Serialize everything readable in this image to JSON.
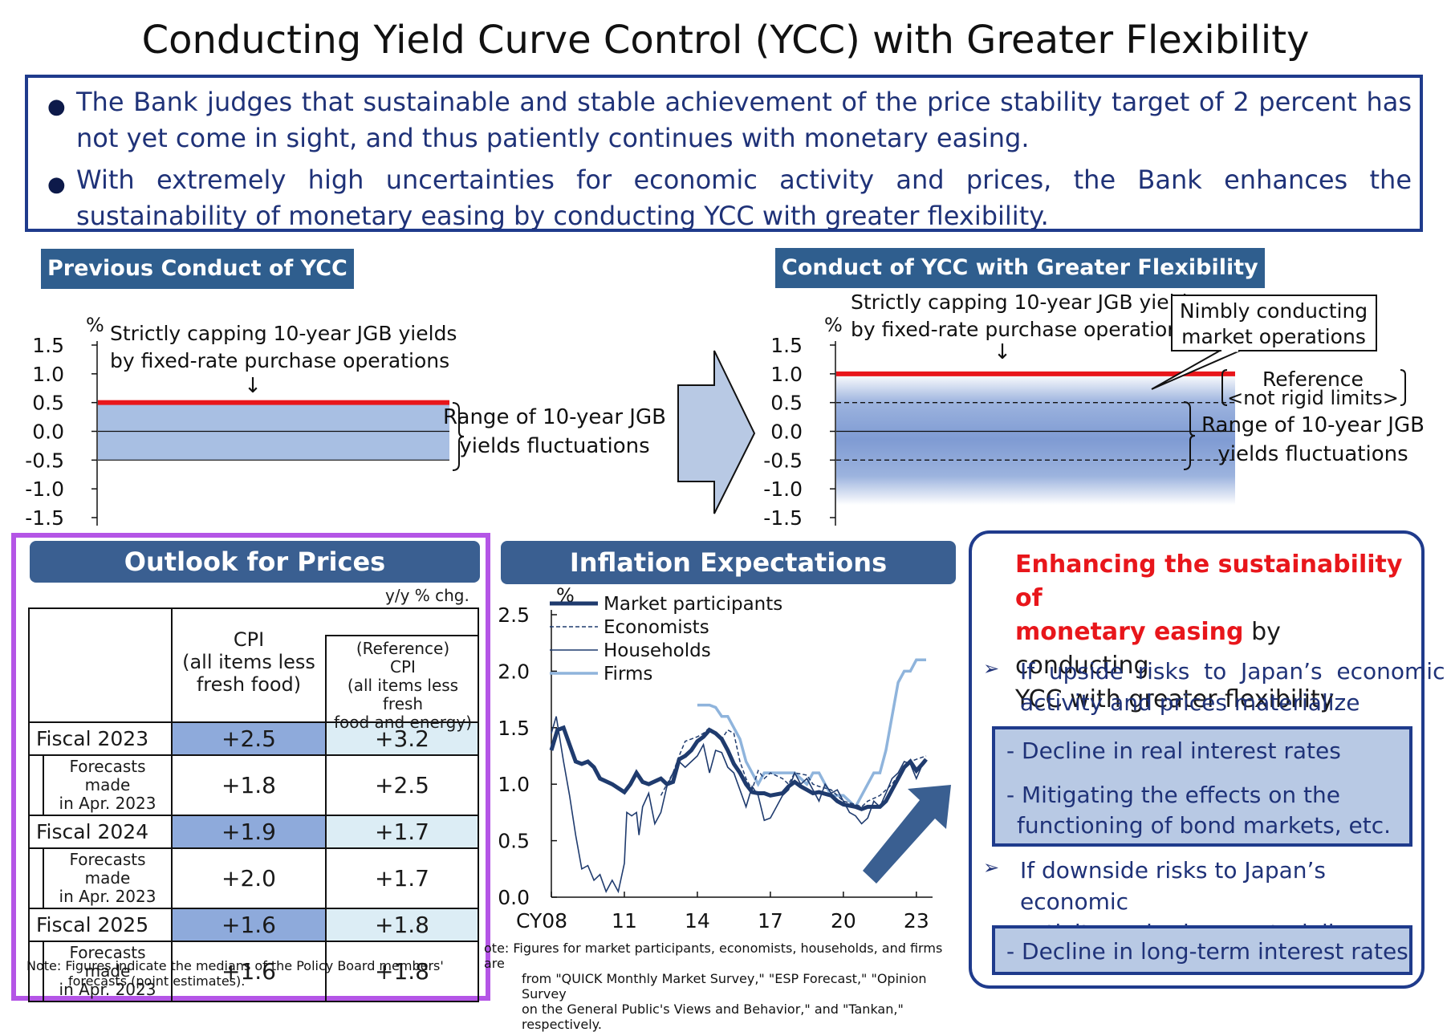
{
  "title": "Conducting Yield Curve Control (YCC) with Greater Flexibility",
  "intro_bullets": [
    "The Bank judges that sustainable and stable achievement of the price stability target of 2 percent has not yet come in sight, and thus patiently continues with monetary easing.",
    "With extremely high uncertainties for economic activity and prices, the Bank enhances the sustainability of monetary easing by conducting YCC with greater flexibility."
  ],
  "previous_ycc": {
    "label": "Previous Conduct of YCC",
    "annotation_line1": "Strictly capping 10-year JGB yields",
    "annotation_line2": "by fixed-rate purchase operations",
    "arrow_glyph": "↓",
    "range_line1": "Range of 10-year JGB",
    "range_line2": "yields fluctuations"
  },
  "flexible_ycc": {
    "label": "Conduct of YCC with Greater Flexibility",
    "annotation_line1": "Strictly capping 10-year JGB yields",
    "annotation_line2": "by fixed-rate purchase operations",
    "arrow_glyph": "↓",
    "callout_line1": "Nimbly conducting",
    "callout_line2": "market operations",
    "reference_line1": "Reference",
    "reference_line2": "<not rigid limits>",
    "range_line1": "Range of 10-year JGB",
    "range_line2": "yields fluctuations"
  },
  "outlook": {
    "heading": "Outlook for Prices",
    "unit": "y/y % chg.",
    "col1_header": [
      "CPI",
      "(all items less",
      "fresh food)"
    ],
    "col2_header": [
      "(Reference)",
      "CPI",
      "(all items less fresh",
      "food and energy)"
    ],
    "rows": [
      {
        "label": "Fiscal 2023",
        "cpi": "+2.5",
        "core": "+3.2",
        "forecast_label": [
          "Forecasts made",
          "in Apr. 2023"
        ],
        "f_cpi": "+1.8",
        "f_core": "+2.5"
      },
      {
        "label": "Fiscal 2024",
        "cpi": "+1.9",
        "core": "+1.7",
        "forecast_label": [
          "Forecasts made",
          "in Apr. 2023"
        ],
        "f_cpi": "+2.0",
        "f_core": "+1.7"
      },
      {
        "label": "Fiscal 2025",
        "cpi": "+1.6",
        "core": "+1.8",
        "forecast_label": [
          "Forecasts made",
          "in Apr. 2023"
        ],
        "f_cpi": "+1.6",
        "f_core": "+1.8"
      }
    ],
    "note_line1": "Note:  Figures  indicate  the  medians  of  the  Policy  Board  members'",
    "note_line2": "forecasts (point estimates)."
  },
  "inflation": {
    "heading": "Inflation Expectations",
    "note_line1": "ote: Figures for market participants, economists, households, and firms are",
    "note_line2": "from \"QUICK Monthly Market Survey,\" \"ESP Forecast,\" \"Opinion Survey",
    "note_line3": "on the General Public's Views and Behavior,\" and \"Tankan,\" respectively."
  },
  "enhancing": {
    "head_red_1": "Enhancing the sustainability of",
    "head_red_2": "monetary easing",
    "head_rest_2": " by conducting",
    "head_line3": "YCC with greater flexibility",
    "bullet_glyph": "➢",
    "upside_1": "If  upside  risks  to  Japan’s  economic",
    "upside_2": "activity and prices materialize",
    "upside_box_1": "- Decline in real interest rates",
    "upside_box_2": "- Mitigating the effects on the",
    "upside_box_3": "functioning of bond markets, etc.",
    "downside_1": "If downside risks to Japan’s economic",
    "downside_2": "activity and prices materialize",
    "downside_box": "- Decline in long-term interest rates"
  },
  "colors": {
    "navy": "#1f3278",
    "panel_blue": "#3a5f91",
    "red_cap": "#e8161b",
    "range_fill": "#a8bfe3",
    "highlight_cell": "#8eaadb",
    "light_cell": "#dcedf5",
    "purple_outline": "#b455e6"
  },
  "chart_data": [
    {
      "type": "area",
      "title": "Previous Conduct of YCC",
      "ylabel": "%",
      "ylim": [
        -1.5,
        1.5
      ],
      "yticks": [
        "1.5",
        "1.0",
        "0.5",
        "0.0",
        "-0.5",
        "-1.0",
        "-1.5"
      ],
      "cap": 0.5,
      "range": [
        -0.5,
        0.5
      ]
    },
    {
      "type": "area",
      "title": "Conduct of YCC with Greater Flexibility",
      "ylabel": "%",
      "ylim": [
        -1.5,
        1.5
      ],
      "yticks": [
        "1.5",
        "1.0",
        "0.5",
        "0.0",
        "-0.5",
        "-1.0",
        "-1.5"
      ],
      "cap": 1.0,
      "reference_range": [
        -0.5,
        0.5
      ]
    },
    {
      "type": "line",
      "title": "Inflation Expectations",
      "ylabel": "%",
      "ylim": [
        0.0,
        2.5
      ],
      "yticks": [
        "2.5",
        "2.0",
        "1.5",
        "1.0",
        "0.5",
        "0.0"
      ],
      "xticks": [
        "CY08",
        "11",
        "14",
        "17",
        "20",
        "23"
      ],
      "xtick_values": [
        2008,
        2011,
        2014,
        2017,
        2020,
        2023
      ],
      "xlim": [
        2008,
        2023.5
      ],
      "series": [
        {
          "name": "Market participants",
          "style": "thick",
          "points": [
            [
              2008,
              1.3
            ],
            [
              2008.25,
              1.48
            ],
            [
              2008.5,
              1.5
            ],
            [
              2008.75,
              1.35
            ],
            [
              2009,
              1.2
            ],
            [
              2009.25,
              1.18
            ],
            [
              2009.5,
              1.2
            ],
            [
              2009.75,
              1.15
            ],
            [
              2010,
              1.05
            ],
            [
              2010.5,
              1.0
            ],
            [
              2011,
              0.93
            ],
            [
              2011.25,
              1.0
            ],
            [
              2011.5,
              1.1
            ],
            [
              2011.75,
              1.02
            ],
            [
              2012,
              1.0
            ],
            [
              2012.5,
              1.05
            ],
            [
              2012.75,
              1.0
            ],
            [
              2013,
              1.02
            ],
            [
              2013.25,
              1.22
            ],
            [
              2013.5,
              1.25
            ],
            [
              2013.75,
              1.3
            ],
            [
              2014,
              1.38
            ],
            [
              2014.25,
              1.42
            ],
            [
              2014.5,
              1.48
            ],
            [
              2014.75,
              1.45
            ],
            [
              2015,
              1.4
            ],
            [
              2015.25,
              1.3
            ],
            [
              2015.5,
              1.18
            ],
            [
              2015.75,
              1.1
            ],
            [
              2016,
              1.0
            ],
            [
              2016.25,
              0.93
            ],
            [
              2016.5,
              0.92
            ],
            [
              2016.75,
              0.92
            ],
            [
              2017,
              0.9
            ],
            [
              2017.5,
              0.92
            ],
            [
              2017.75,
              0.98
            ],
            [
              2018,
              1.02
            ],
            [
              2018.25,
              0.98
            ],
            [
              2018.5,
              0.95
            ],
            [
              2018.75,
              0.92
            ],
            [
              2019,
              0.93
            ],
            [
              2019.5,
              0.9
            ],
            [
              2019.75,
              0.85
            ],
            [
              2020,
              0.82
            ],
            [
              2020.5,
              0.8
            ],
            [
              2020.75,
              0.78
            ],
            [
              2021,
              0.8
            ],
            [
              2021.5,
              0.8
            ],
            [
              2021.75,
              0.85
            ],
            [
              2022,
              0.95
            ],
            [
              2022.25,
              1.05
            ],
            [
              2022.5,
              1.15
            ],
            [
              2022.75,
              1.2
            ],
            [
              2023,
              1.12
            ],
            [
              2023.25,
              1.18
            ],
            [
              2023.4,
              1.22
            ]
          ]
        },
        {
          "name": "Economists",
          "style": "dashed",
          "points": [
            [
              2012.5,
              0.9
            ],
            [
              2012.75,
              1.0
            ],
            [
              2013,
              1.1
            ],
            [
              2013.25,
              1.25
            ],
            [
              2013.5,
              1.38
            ],
            [
              2013.75,
              1.4
            ],
            [
              2014,
              1.42
            ],
            [
              2014.25,
              1.45
            ],
            [
              2014.5,
              1.5
            ],
            [
              2014.75,
              1.45
            ],
            [
              2015,
              1.4
            ],
            [
              2015.25,
              1.48
            ],
            [
              2015.5,
              1.45
            ],
            [
              2015.75,
              1.2
            ],
            [
              2016,
              1.05
            ],
            [
              2016.25,
              0.95
            ],
            [
              2016.5,
              1.12
            ],
            [
              2016.75,
              1.05
            ],
            [
              2017,
              1.1
            ],
            [
              2017.5,
              1.05
            ],
            [
              2017.75,
              1.0
            ],
            [
              2018,
              1.1
            ],
            [
              2018.5,
              1.08
            ],
            [
              2018.75,
              1.0
            ],
            [
              2019,
              0.98
            ],
            [
              2019.5,
              0.95
            ],
            [
              2020,
              0.85
            ],
            [
              2020.5,
              0.82
            ],
            [
              2020.75,
              0.8
            ],
            [
              2021,
              0.85
            ],
            [
              2021.5,
              0.9
            ],
            [
              2022,
              1.0
            ],
            [
              2022.5,
              1.15
            ],
            [
              2022.75,
              1.2
            ],
            [
              2023,
              1.22
            ],
            [
              2023.4,
              1.25
            ]
          ]
        },
        {
          "name": "Households",
          "style": "thin",
          "points": [
            [
              2008,
              1.45
            ],
            [
              2008.2,
              1.6
            ],
            [
              2008.5,
              1.2
            ],
            [
              2008.75,
              0.9
            ],
            [
              2009,
              0.55
            ],
            [
              2009.25,
              0.25
            ],
            [
              2009.5,
              0.28
            ],
            [
              2009.75,
              0.15
            ],
            [
              2010,
              0.2
            ],
            [
              2010.25,
              0.05
            ],
            [
              2010.5,
              0.15
            ],
            [
              2010.75,
              0.05
            ],
            [
              2011,
              0.3
            ],
            [
              2011.1,
              0.75
            ],
            [
              2011.3,
              0.72
            ],
            [
              2011.5,
              0.75
            ],
            [
              2011.6,
              0.55
            ],
            [
              2011.75,
              0.8
            ],
            [
              2012,
              0.92
            ],
            [
              2012.25,
              0.65
            ],
            [
              2012.5,
              0.75
            ],
            [
              2012.75,
              0.98
            ],
            [
              2013,
              1.1
            ],
            [
              2013.25,
              1.2
            ],
            [
              2013.5,
              1.15
            ],
            [
              2013.75,
              1.2
            ],
            [
              2014,
              1.25
            ],
            [
              2014.25,
              1.35
            ],
            [
              2014.5,
              1.1
            ],
            [
              2014.75,
              1.3
            ],
            [
              2015,
              1.28
            ],
            [
              2015.25,
              1.15
            ],
            [
              2015.5,
              1.1
            ],
            [
              2015.75,
              0.95
            ],
            [
              2016,
              0.8
            ],
            [
              2016.25,
              0.98
            ],
            [
              2016.5,
              0.9
            ],
            [
              2016.75,
              0.68
            ],
            [
              2017,
              0.7
            ],
            [
              2017.25,
              0.8
            ],
            [
              2017.5,
              0.9
            ],
            [
              2017.75,
              0.95
            ],
            [
              2018,
              1.1
            ],
            [
              2018.25,
              1.0
            ],
            [
              2018.5,
              1.05
            ],
            [
              2018.75,
              0.95
            ],
            [
              2019,
              0.85
            ],
            [
              2019.25,
              1.0
            ],
            [
              2019.5,
              0.92
            ],
            [
              2019.75,
              0.95
            ],
            [
              2020,
              0.85
            ],
            [
              2020.25,
              0.75
            ],
            [
              2020.5,
              0.72
            ],
            [
              2020.75,
              0.65
            ],
            [
              2021,
              0.7
            ],
            [
              2021.25,
              0.85
            ],
            [
              2021.5,
              0.8
            ],
            [
              2021.75,
              0.92
            ],
            [
              2022,
              1.05
            ],
            [
              2022.25,
              1.1
            ],
            [
              2022.5,
              1.2
            ],
            [
              2022.75,
              1.18
            ],
            [
              2023,
              1.05
            ],
            [
              2023.2,
              1.15
            ],
            [
              2023.4,
              1.2
            ]
          ]
        },
        {
          "name": "Firms",
          "style": "light",
          "points": [
            [
              2014,
              1.7
            ],
            [
              2014.5,
              1.7
            ],
            [
              2014.75,
              1.68
            ],
            [
              2015,
              1.6
            ],
            [
              2015.25,
              1.6
            ],
            [
              2015.5,
              1.5
            ],
            [
              2015.75,
              1.4
            ],
            [
              2016,
              1.2
            ],
            [
              2016.25,
              1.1
            ],
            [
              2016.5,
              1.0
            ],
            [
              2016.75,
              1.1
            ],
            [
              2017,
              1.1
            ],
            [
              2017.5,
              1.1
            ],
            [
              2018,
              1.1
            ],
            [
              2018.25,
              1.05
            ],
            [
              2018.5,
              1.0
            ],
            [
              2018.75,
              1.1
            ],
            [
              2019,
              1.1
            ],
            [
              2019.25,
              1.0
            ],
            [
              2019.5,
              0.9
            ],
            [
              2020,
              0.9
            ],
            [
              2020.5,
              0.8
            ],
            [
              2020.75,
              0.9
            ],
            [
              2021,
              1.0
            ],
            [
              2021.25,
              1.1
            ],
            [
              2021.5,
              1.1
            ],
            [
              2021.75,
              1.3
            ],
            [
              2022,
              1.6
            ],
            [
              2022.25,
              1.9
            ],
            [
              2022.5,
              2.0
            ],
            [
              2022.75,
              2.0
            ],
            [
              2023,
              2.1
            ],
            [
              2023.4,
              2.1
            ]
          ]
        }
      ]
    }
  ]
}
